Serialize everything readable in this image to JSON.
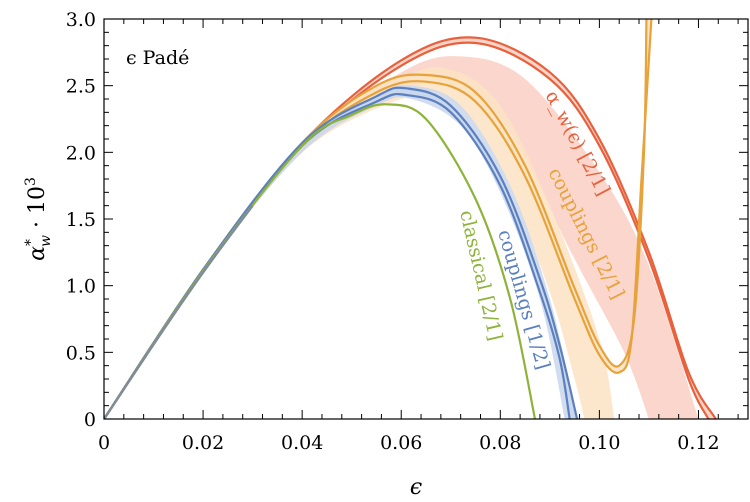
{
  "chart_data": {
    "type": "line",
    "annotation": "ϵ Padé",
    "xlabel": "ϵ",
    "ylabel": "α*_w · 10^3",
    "xlim": [
      0,
      0.13
    ],
    "ylim": [
      0,
      3.0
    ],
    "x_ticks": [
      0,
      0.02,
      0.04,
      0.06,
      0.08,
      0.1,
      0.12
    ],
    "x_tick_labels": [
      "0",
      "0.02",
      "0.04",
      "0.06",
      "0.08",
      "0.10",
      "0.12"
    ],
    "y_ticks": [
      0,
      0.5,
      1.0,
      1.5,
      2.0,
      2.5,
      3.0
    ],
    "y_tick_labels": [
      "0",
      "0.5",
      "1.0",
      "1.5",
      "2.0",
      "2.5",
      "3.0"
    ],
    "grid": false,
    "series": [
      {
        "name": "α_w(ϵ) [2/1]",
        "color": "#e8603c",
        "band_color": "#f9cfc3",
        "upper": [
          [
            0,
            0
          ],
          [
            0.02,
            1.12
          ],
          [
            0.04,
            2.07
          ],
          [
            0.06,
            2.69
          ],
          [
            0.075,
            2.86
          ],
          [
            0.09,
            2.6
          ],
          [
            0.1,
            2.1
          ],
          [
            0.11,
            1.25
          ],
          [
            0.118,
            0.35
          ],
          [
            0.1235,
            0
          ]
        ],
        "lower": [
          [
            0,
            0
          ],
          [
            0.02,
            1.1
          ],
          [
            0.04,
            2.05
          ],
          [
            0.06,
            2.65
          ],
          [
            0.075,
            2.82
          ],
          [
            0.09,
            2.55
          ],
          [
            0.1,
            2.05
          ],
          [
            0.11,
            1.2
          ],
          [
            0.118,
            0.3
          ],
          [
            0.122,
            0
          ]
        ],
        "band_upper": [
          [
            0,
            0
          ],
          [
            0.02,
            1.12
          ],
          [
            0.04,
            2.05
          ],
          [
            0.06,
            2.6
          ],
          [
            0.072,
            2.72
          ],
          [
            0.085,
            2.55
          ],
          [
            0.1,
            1.85
          ],
          [
            0.11,
            1.15
          ],
          [
            0.12,
            0
          ]
        ],
        "band_lower": [
          [
            0,
            0
          ],
          [
            0.02,
            1.1
          ],
          [
            0.04,
            2.0
          ],
          [
            0.06,
            2.45
          ],
          [
            0.072,
            2.5
          ],
          [
            0.082,
            2.15
          ],
          [
            0.095,
            1.2
          ],
          [
            0.105,
            0.5
          ],
          [
            0.11,
            0
          ]
        ]
      },
      {
        "name": "couplings [2/1]",
        "color": "#e8a23a",
        "band_color": "#fbe3c3",
        "upper": [
          [
            0,
            0
          ],
          [
            0.02,
            1.12
          ],
          [
            0.04,
            2.07
          ],
          [
            0.055,
            2.5
          ],
          [
            0.065,
            2.58
          ],
          [
            0.075,
            2.45
          ],
          [
            0.085,
            1.9
          ],
          [
            0.095,
            0.98
          ],
          [
            0.1,
            0.55
          ],
          [
            0.104,
            0.4
          ],
          [
            0.107,
            0.75
          ],
          [
            0.109,
            2.0
          ],
          [
            0.1095,
            3.0
          ]
        ],
        "lower": [
          [
            0,
            0
          ],
          [
            0.02,
            1.1
          ],
          [
            0.04,
            2.05
          ],
          [
            0.055,
            2.45
          ],
          [
            0.065,
            2.53
          ],
          [
            0.075,
            2.38
          ],
          [
            0.085,
            1.82
          ],
          [
            0.095,
            0.9
          ],
          [
            0.1,
            0.48
          ],
          [
            0.104,
            0.35
          ],
          [
            0.1065,
            0.6
          ],
          [
            0.1085,
            1.8
          ],
          [
            0.1105,
            3.0
          ]
        ],
        "band_upper": [
          [
            0,
            0
          ],
          [
            0.02,
            1.12
          ],
          [
            0.04,
            2.05
          ],
          [
            0.06,
            2.55
          ],
          [
            0.07,
            2.62
          ],
          [
            0.08,
            2.35
          ],
          [
            0.09,
            1.6
          ],
          [
            0.1,
            0.6
          ],
          [
            0.103,
            0
          ]
        ],
        "band_lower": [
          [
            0,
            0
          ],
          [
            0.02,
            1.1
          ],
          [
            0.04,
            2.0
          ],
          [
            0.06,
            2.4
          ],
          [
            0.07,
            2.4
          ],
          [
            0.08,
            1.9
          ],
          [
            0.09,
            0.95
          ],
          [
            0.095,
            0.3
          ],
          [
            0.097,
            0
          ]
        ]
      },
      {
        "name": "couplings [1/2]",
        "color": "#5b80bf",
        "band_color": "#c9d6ec",
        "upper": [
          [
            0,
            0
          ],
          [
            0.02,
            1.12
          ],
          [
            0.04,
            2.07
          ],
          [
            0.055,
            2.42
          ],
          [
            0.061,
            2.48
          ],
          [
            0.07,
            2.35
          ],
          [
            0.08,
            1.82
          ],
          [
            0.088,
            1.05
          ],
          [
            0.092,
            0.55
          ],
          [
            0.0955,
            0
          ]
        ],
        "lower": [
          [
            0,
            0
          ],
          [
            0.02,
            1.1
          ],
          [
            0.04,
            2.05
          ],
          [
            0.055,
            2.38
          ],
          [
            0.061,
            2.43
          ],
          [
            0.07,
            2.3
          ],
          [
            0.08,
            1.75
          ],
          [
            0.088,
            0.95
          ],
          [
            0.092,
            0.45
          ],
          [
            0.094,
            0
          ]
        ],
        "band_upper": [
          [
            0,
            0
          ],
          [
            0.02,
            1.12
          ],
          [
            0.04,
            2.05
          ],
          [
            0.055,
            2.42
          ],
          [
            0.062,
            2.5
          ],
          [
            0.072,
            2.35
          ],
          [
            0.082,
            1.75
          ],
          [
            0.09,
            0.9
          ],
          [
            0.0955,
            0
          ]
        ],
        "band_lower": [
          [
            0,
            0
          ],
          [
            0.02,
            1.1
          ],
          [
            0.04,
            2.0
          ],
          [
            0.055,
            2.35
          ],
          [
            0.062,
            2.4
          ],
          [
            0.072,
            2.2
          ],
          [
            0.08,
            1.7
          ],
          [
            0.088,
            0.9
          ],
          [
            0.093,
            0
          ]
        ]
      },
      {
        "name": "classical [2/1]",
        "color": "#8db33a",
        "upper": [
          [
            0,
            0
          ],
          [
            0.02,
            1.11
          ],
          [
            0.04,
            2.05
          ],
          [
            0.05,
            2.28
          ],
          [
            0.057,
            2.36
          ],
          [
            0.065,
            2.25
          ],
          [
            0.075,
            1.65
          ],
          [
            0.082,
            0.9
          ],
          [
            0.087,
            0
          ]
        ]
      }
    ]
  }
}
